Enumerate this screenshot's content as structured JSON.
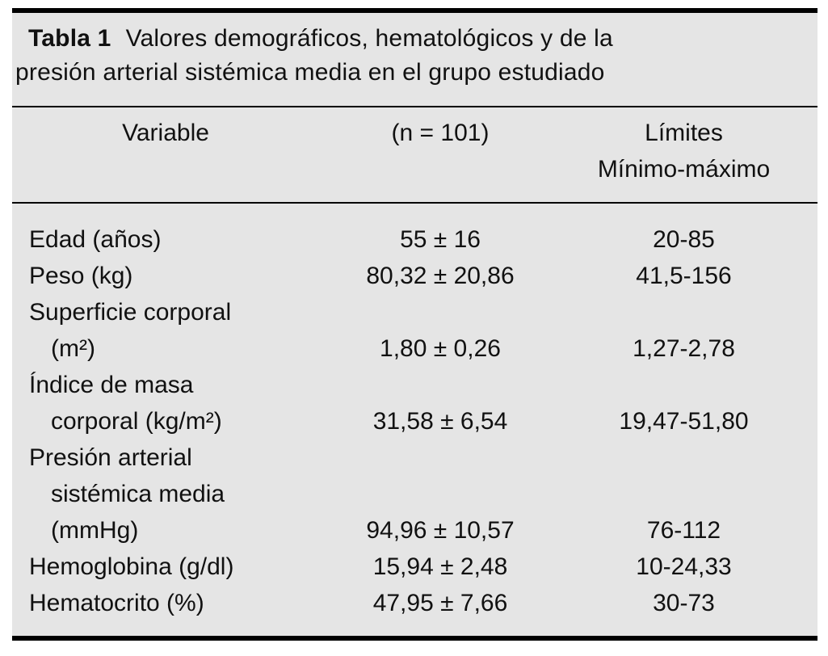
{
  "table": {
    "label": "Tabla 1",
    "title_line1": "Valores demográficos, hematológicos y de la",
    "title_line2": "presión arterial sistémica media en el grupo estudiado",
    "header": {
      "variable": "Variable",
      "n": "(n = 101)",
      "limits_line1": "Límites",
      "limits_line2": "Mínimo-máximo"
    },
    "rows": [
      {
        "variable": "Edad (años)",
        "lines": [
          "Edad (años)"
        ],
        "value": "55 ± 16",
        "range": "20-85"
      },
      {
        "variable": "Peso (kg)",
        "lines": [
          "Peso (kg)"
        ],
        "value": "80,32 ± 20,86",
        "range": "41,5-156"
      },
      {
        "variable": "Superficie corporal (m²)",
        "lines": [
          "Superficie corporal",
          "(m²)"
        ],
        "value": "1,80 ± 0,26",
        "range": "1,27-2,78"
      },
      {
        "variable": "Índice de masa corporal (kg/m²)",
        "lines": [
          "Índice de masa",
          "corporal (kg/m²)"
        ],
        "value": "31,58 ± 6,54",
        "range": "19,47-51,80"
      },
      {
        "variable": "Presión arterial sistémica media (mmHg)",
        "lines": [
          "Presión arterial",
          "sistémica media",
          "(mmHg)"
        ],
        "value": "94,96 ± 10,57",
        "range": "76-112"
      },
      {
        "variable": "Hemoglobina (g/dl)",
        "lines": [
          "Hemoglobina (g/dl)"
        ],
        "value": "15,94 ± 2,48",
        "range": "10-24,33"
      },
      {
        "variable": "Hematocrito (%)",
        "lines": [
          "Hematocrito (%)"
        ],
        "value": "47,95 ± 7,66",
        "range": "30-73"
      }
    ],
    "colors": {
      "panel_bg": "#e5e5e5",
      "rule": "#000000",
      "text": "#111111"
    }
  }
}
